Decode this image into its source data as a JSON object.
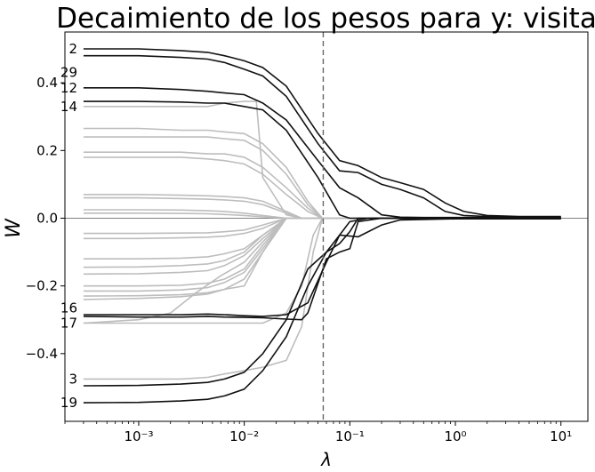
{
  "chart_data": {
    "type": "line",
    "title": "Decaimiento de los pesos para y: visita",
    "xlabel": "λ",
    "ylabel": "W",
    "xscale": "log",
    "xlim": [
      0.0002,
      18
    ],
    "ylim": [
      -0.6,
      0.55
    ],
    "xticks": [
      {
        "value": 0.001,
        "label": "10⁻³"
      },
      {
        "value": 0.01,
        "label": "10⁻²"
      },
      {
        "value": 0.1,
        "label": "10⁻¹"
      },
      {
        "value": 1,
        "label": "10⁰"
      },
      {
        "value": 10,
        "label": "10¹"
      }
    ],
    "yticks": [
      {
        "value": 0.4,
        "label": "0.4"
      },
      {
        "value": 0.2,
        "label": "0.2"
      },
      {
        "value": 0.0,
        "label": "0.0"
      },
      {
        "value": -0.2,
        "label": "−0.2"
      },
      {
        "value": -0.4,
        "label": "−0.4"
      }
    ],
    "zero_line": true,
    "selected_lambda": 0.056,
    "grid": false,
    "legend": "none",
    "colors": {
      "highlight": "#111111",
      "background": "#bdbdbd",
      "zero": "#808080",
      "selected": "#666666"
    },
    "highlighted_series": [
      {
        "name": "2",
        "label_y": 0.5,
        "x": [
          0.0003,
          0.001,
          0.0025,
          0.0045,
          0.0065,
          0.01,
          0.015,
          0.025,
          0.05,
          0.08,
          0.12,
          0.2,
          0.3,
          0.5,
          0.8,
          1.2,
          2,
          4,
          10
        ],
        "values": [
          0.5,
          0.5,
          0.495,
          0.49,
          0.48,
          0.465,
          0.445,
          0.39,
          0.25,
          0.17,
          0.155,
          0.12,
          0.105,
          0.085,
          0.045,
          0.02,
          0.008,
          0.005,
          0.005
        ]
      },
      {
        "name": "29",
        "label_y": 0.43,
        "x": [
          0.0003,
          0.001,
          0.0025,
          0.0045,
          0.0065,
          0.01,
          0.015,
          0.025,
          0.05,
          0.08,
          0.12,
          0.2,
          0.3,
          0.5,
          0.8,
          1.2,
          2,
          4,
          10
        ],
        "values": [
          0.48,
          0.48,
          0.475,
          0.47,
          0.46,
          0.44,
          0.42,
          0.36,
          0.22,
          0.14,
          0.135,
          0.1,
          0.085,
          0.06,
          0.02,
          0.008,
          0.005,
          0.004,
          0.004
        ]
      },
      {
        "name": "12",
        "label_y": 0.385,
        "x": [
          0.0003,
          0.001,
          0.0025,
          0.0045,
          0.0065,
          0.01,
          0.015,
          0.025,
          0.05,
          0.08,
          0.12,
          0.2,
          0.3,
          0.5,
          1,
          10
        ],
        "values": [
          0.385,
          0.385,
          0.38,
          0.375,
          0.37,
          0.365,
          0.34,
          0.29,
          0.17,
          0.09,
          0.06,
          0.01,
          0.003,
          0.002,
          0.002,
          0.002
        ]
      },
      {
        "name": "14",
        "label_y": 0.33,
        "x": [
          0.0003,
          0.001,
          0.0025,
          0.0045,
          0.0065,
          0.01,
          0.015,
          0.025,
          0.05,
          0.08,
          0.1,
          0.2,
          10
        ],
        "values": [
          0.345,
          0.345,
          0.343,
          0.34,
          0.34,
          0.33,
          0.32,
          0.26,
          0.12,
          0.01,
          0.0,
          0.0,
          0.0
        ]
      },
      {
        "name": "16",
        "label_y": -0.265,
        "x": [
          0.0003,
          0.001,
          0.0025,
          0.0045,
          0.0065,
          0.01,
          0.015,
          0.025,
          0.04,
          0.06,
          0.08,
          0.12,
          0.2,
          0.3,
          1,
          10
        ],
        "values": [
          -0.285,
          -0.285,
          -0.285,
          -0.283,
          -0.285,
          -0.288,
          -0.29,
          -0.285,
          -0.25,
          -0.13,
          -0.05,
          -0.055,
          -0.02,
          -0.005,
          -0.002,
          -0.002
        ]
      },
      {
        "name": "17",
        "label_y": -0.31,
        "x": [
          0.0003,
          0.001,
          0.0025,
          0.0045,
          0.0065,
          0.01,
          0.015,
          0.025,
          0.035,
          0.04,
          0.06,
          0.08,
          0.1,
          0.12,
          0.2,
          10
        ],
        "values": [
          -0.29,
          -0.292,
          -0.292,
          -0.29,
          -0.292,
          -0.293,
          -0.294,
          -0.298,
          -0.3,
          -0.28,
          -0.12,
          -0.1,
          -0.09,
          -0.01,
          0.0,
          0.0
        ]
      },
      {
        "name": "3",
        "label_y": -0.475,
        "x": [
          0.0003,
          0.001,
          0.0025,
          0.0045,
          0.0065,
          0.01,
          0.015,
          0.025,
          0.04,
          0.06,
          0.08,
          0.1,
          0.12,
          0.2,
          10
        ],
        "values": [
          -0.495,
          -0.494,
          -0.49,
          -0.485,
          -0.475,
          -0.455,
          -0.4,
          -0.3,
          -0.15,
          -0.1,
          -0.075,
          -0.04,
          0.0,
          0.0,
          0.0
        ]
      },
      {
        "name": "19",
        "label_y": -0.545,
        "x": [
          0.0003,
          0.001,
          0.0025,
          0.0045,
          0.0065,
          0.01,
          0.015,
          0.025,
          0.04,
          0.06,
          0.08,
          0.1,
          0.15,
          0.2,
          10
        ],
        "values": [
          -0.545,
          -0.544,
          -0.54,
          -0.535,
          -0.525,
          -0.505,
          -0.45,
          -0.35,
          -0.2,
          -0.1,
          -0.05,
          -0.01,
          0.0,
          0.0,
          0.0
        ]
      }
    ],
    "background_series": [
      {
        "x": [
          0.0003,
          0.001,
          0.0025,
          0.0045,
          0.0065,
          0.01,
          0.013,
          0.015,
          0.025,
          0.035,
          10
        ],
        "values": [
          0.33,
          0.33,
          0.33,
          0.33,
          0.34,
          0.345,
          0.345,
          0.12,
          0.01,
          0.0,
          0.0
        ]
      },
      {
        "x": [
          0.0003,
          0.001,
          0.0025,
          0.0045,
          0.0065,
          0.01,
          0.015,
          0.025,
          0.04,
          0.055,
          10
        ],
        "values": [
          0.265,
          0.265,
          0.26,
          0.26,
          0.255,
          0.25,
          0.22,
          0.15,
          0.05,
          0.0,
          0.0
        ]
      },
      {
        "x": [
          0.0003,
          0.001,
          0.0025,
          0.0045,
          0.0065,
          0.01,
          0.015,
          0.025,
          0.04,
          0.055,
          10
        ],
        "values": [
          0.24,
          0.24,
          0.24,
          0.24,
          0.235,
          0.23,
          0.2,
          0.13,
          0.04,
          0.0,
          0.0
        ]
      },
      {
        "x": [
          0.0003,
          0.001,
          0.0025,
          0.0045,
          0.0065,
          0.01,
          0.015,
          0.025,
          0.04,
          0.055,
          10
        ],
        "values": [
          0.195,
          0.195,
          0.195,
          0.19,
          0.19,
          0.18,
          0.15,
          0.09,
          0.03,
          0.0,
          0.0
        ]
      },
      {
        "x": [
          0.0003,
          0.001,
          0.0025,
          0.0045,
          0.0065,
          0.01,
          0.015,
          0.025,
          0.04,
          0.055,
          10
        ],
        "values": [
          0.18,
          0.18,
          0.18,
          0.175,
          0.17,
          0.16,
          0.13,
          0.07,
          0.02,
          0.0,
          0.0
        ]
      },
      {
        "x": [
          0.0003,
          0.001,
          0.0025,
          0.0045,
          0.0065,
          0.01,
          0.015,
          0.025,
          0.035,
          10
        ],
        "values": [
          0.07,
          0.07,
          0.068,
          0.066,
          0.064,
          0.06,
          0.05,
          0.02,
          0.0,
          0.0
        ]
      },
      {
        "x": [
          0.0003,
          0.001,
          0.0025,
          0.0045,
          0.0065,
          0.01,
          0.015,
          0.025,
          0.035,
          10
        ],
        "values": [
          0.06,
          0.06,
          0.058,
          0.056,
          0.054,
          0.05,
          0.04,
          0.015,
          0.0,
          0.0
        ]
      },
      {
        "x": [
          0.0003,
          0.001,
          0.0025,
          0.0045,
          0.0065,
          0.01,
          0.015,
          0.025,
          10
        ],
        "values": [
          0.025,
          0.025,
          0.024,
          0.022,
          0.02,
          0.015,
          0.008,
          0.0,
          0.0
        ]
      },
      {
        "x": [
          0.0003,
          0.001,
          0.0025,
          0.0045,
          0.0065,
          0.01,
          0.015,
          0.025,
          10
        ],
        "values": [
          0.015,
          0.015,
          0.014,
          0.013,
          0.011,
          0.008,
          0.004,
          0.0,
          0.0
        ]
      },
      {
        "x": [
          0.0003,
          0.001,
          0.0025,
          0.0045,
          0.0065,
          0.01,
          0.015,
          0.025,
          10
        ],
        "values": [
          -0.045,
          -0.045,
          -0.044,
          -0.043,
          -0.04,
          -0.035,
          -0.02,
          0.0,
          0.0
        ]
      },
      {
        "x": [
          0.0003,
          0.001,
          0.0025,
          0.0045,
          0.0065,
          0.01,
          0.015,
          0.025,
          10
        ],
        "values": [
          -0.06,
          -0.06,
          -0.058,
          -0.056,
          -0.053,
          -0.045,
          -0.03,
          0.0,
          0.0
        ]
      },
      {
        "x": [
          0.0003,
          0.001,
          0.0025,
          0.0045,
          0.0065,
          0.01,
          0.015,
          0.025,
          10
        ],
        "values": [
          -0.12,
          -0.12,
          -0.118,
          -0.114,
          -0.105,
          -0.09,
          -0.05,
          0.0,
          0.0
        ]
      },
      {
        "x": [
          0.0003,
          0.001,
          0.0025,
          0.0045,
          0.0065,
          0.01,
          0.015,
          0.025,
          10
        ],
        "values": [
          -0.145,
          -0.144,
          -0.14,
          -0.135,
          -0.125,
          -0.1,
          -0.05,
          0.0,
          0.0
        ]
      },
      {
        "x": [
          0.0003,
          0.001,
          0.0025,
          0.0045,
          0.0065,
          0.01,
          0.015,
          0.025,
          10
        ],
        "values": [
          -0.165,
          -0.164,
          -0.16,
          -0.155,
          -0.14,
          -0.11,
          -0.06,
          0.0,
          0.0
        ]
      },
      {
        "x": [
          0.0003,
          0.001,
          0.0025,
          0.0045,
          0.0065,
          0.01,
          0.015,
          0.025,
          10
        ],
        "values": [
          -0.2,
          -0.2,
          -0.198,
          -0.192,
          -0.18,
          -0.15,
          -0.08,
          0.0,
          0.0
        ]
      },
      {
        "x": [
          0.0003,
          0.001,
          0.0025,
          0.0045,
          0.0065,
          0.01,
          0.015,
          0.025,
          10
        ],
        "values": [
          -0.215,
          -0.215,
          -0.212,
          -0.205,
          -0.19,
          -0.16,
          -0.09,
          0.0,
          0.0
        ]
      },
      {
        "x": [
          0.0003,
          0.001,
          0.0025,
          0.0045,
          0.0065,
          0.01,
          0.015,
          0.025,
          10
        ],
        "values": [
          -0.23,
          -0.229,
          -0.226,
          -0.22,
          -0.21,
          -0.18,
          -0.1,
          0.0,
          0.0
        ]
      },
      {
        "x": [
          0.0003,
          0.001,
          0.0025,
          0.0045,
          0.0065,
          0.01,
          0.015,
          0.025,
          10
        ],
        "values": [
          -0.24,
          -0.237,
          -0.232,
          -0.224,
          -0.21,
          -0.2,
          -0.1,
          0.0,
          0.0
        ]
      },
      {
        "x": [
          0.0003,
          0.001,
          0.002,
          0.0035,
          0.006,
          0.01,
          0.015,
          0.025,
          10
        ],
        "values": [
          -0.31,
          -0.3,
          -0.28,
          -0.22,
          -0.17,
          -0.13,
          -0.07,
          0.0,
          0.0
        ]
      },
      {
        "x": [
          0.0003,
          0.001,
          0.0025,
          0.0045,
          0.0065,
          0.01,
          0.015,
          0.025,
          0.035,
          0.045,
          0.055,
          10
        ],
        "values": [
          -0.31,
          -0.31,
          -0.31,
          -0.31,
          -0.31,
          -0.31,
          -0.31,
          -0.28,
          -0.2,
          -0.05,
          0.0,
          0.0
        ]
      },
      {
        "x": [
          0.0003,
          0.001,
          0.0025,
          0.0045,
          0.0065,
          0.01,
          0.015,
          0.025,
          0.035,
          0.045,
          0.055,
          10
        ],
        "values": [
          -0.475,
          -0.475,
          -0.475,
          -0.47,
          -0.46,
          -0.45,
          -0.44,
          -0.42,
          -0.32,
          -0.1,
          0.0,
          0.0
        ]
      }
    ]
  }
}
